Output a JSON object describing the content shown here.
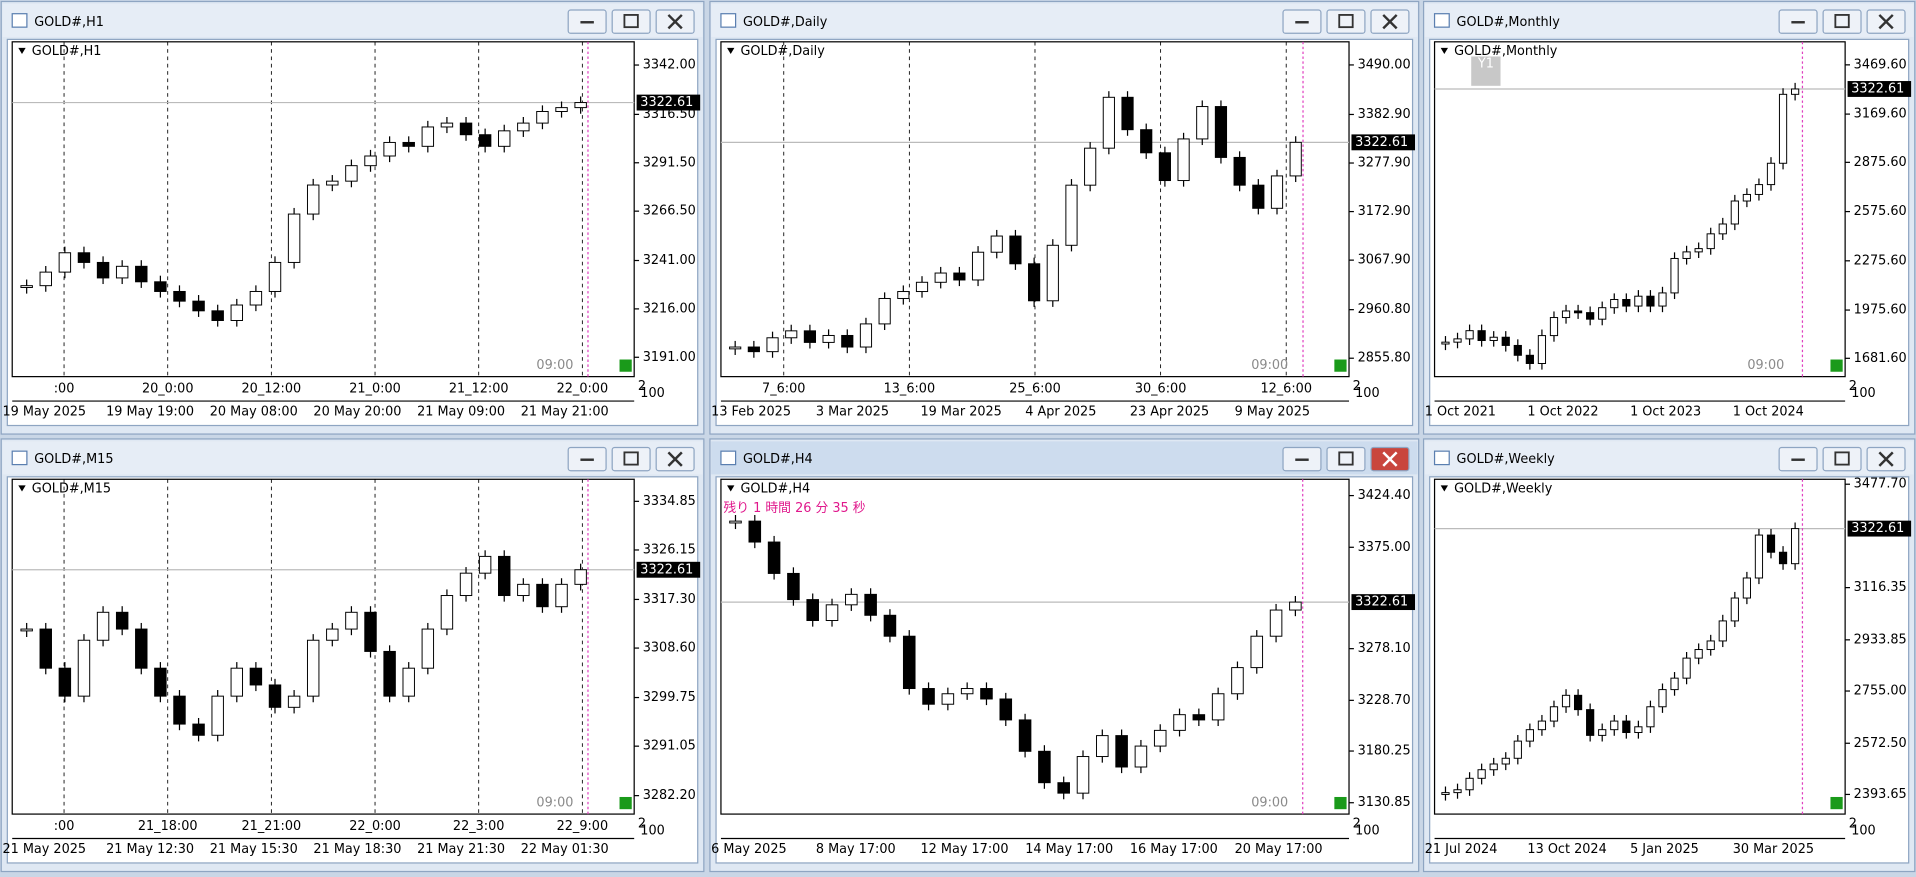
{
  "windows": [
    {
      "title": "GOLD#,H1",
      "label": "GOLD#,H1",
      "ylim": [
        3181,
        3354
      ],
      "yticks": [
        {
          "value": 3342,
          "label": "3342.00"
        },
        {
          "value": 3316.5,
          "label": "3316.50"
        },
        {
          "value": 3291.5,
          "label": "3291.50"
        },
        {
          "value": 3266.5,
          "label": "3266.50"
        },
        {
          "value": 3241,
          "label": "3241.00"
        },
        {
          "value": 3216,
          "label": "3216.00"
        },
        {
          "value": 3191,
          "label": "3191.00"
        }
      ],
      "current_price": 3322.61,
      "time_marker": "09:00",
      "axis_corner": [
        "2",
        "100"
      ],
      "dates": [
        "19 May 2025",
        "19 May 19:00",
        "20 May 08:00",
        "20 May 20:00",
        "21 May 09:00",
        "21 May 21:00"
      ],
      "grid_labels": [
        ":00",
        "20_0:00",
        "20_12:00",
        "21_0:00",
        "21_12:00",
        "22_0:00"
      ],
      "closes": [
        3228,
        3235,
        3245,
        3240,
        3232,
        3238,
        3230,
        3225,
        3220,
        3215,
        3210,
        3218,
        3225,
        3240,
        3265,
        3280,
        3282,
        3290,
        3295,
        3302,
        3300,
        3310,
        3312,
        3306,
        3300,
        3308,
        3312,
        3318,
        3320,
        3322.61
      ]
    },
    {
      "title": "GOLD#,Daily",
      "label": "GOLD#,Daily",
      "ylim": [
        2816,
        3540
      ],
      "yticks": [
        {
          "value": 3490,
          "label": "3490.00"
        },
        {
          "value": 3382.9,
          "label": "3382.90"
        },
        {
          "value": 3277.9,
          "label": "3277.90"
        },
        {
          "value": 3172.9,
          "label": "3172.90"
        },
        {
          "value": 3067.9,
          "label": "3067.90"
        },
        {
          "value": 2960.8,
          "label": "2960.80"
        },
        {
          "value": 2855.8,
          "label": "2855.80"
        }
      ],
      "current_price": 3322.61,
      "time_marker": "09:00",
      "axis_corner": [
        "2",
        "100"
      ],
      "dates": [
        "13 Feb 2025",
        "3 Mar 2025",
        "19 Mar 2025",
        "4 Apr 2025",
        "23 Apr 2025",
        "9 May 2025"
      ],
      "grid_labels": [
        "7_6:00",
        "13_6:00",
        "25_6:00",
        "30_6:00",
        "12_6:00"
      ],
      "closes": [
        2880,
        2870,
        2900,
        2915,
        2890,
        2905,
        2880,
        2930,
        2985,
        3000,
        3020,
        3040,
        3025,
        3085,
        3120,
        3060,
        2980,
        3100,
        3230,
        3310,
        3420,
        3350,
        3300,
        3240,
        3330,
        3400,
        3290,
        3230,
        3180,
        3250,
        3322.61
      ]
    },
    {
      "title": "GOLD#,Monthly",
      "label": "GOLD#,Monthly",
      "ylim": [
        1570,
        3610
      ],
      "button": "Y1",
      "yticks": [
        {
          "value": 3469.6,
          "label": "3469.60"
        },
        {
          "value": 3169.6,
          "label": "3169.60"
        },
        {
          "value": 2875.6,
          "label": "2875.60"
        },
        {
          "value": 2575.6,
          "label": "2575.60"
        },
        {
          "value": 2275.6,
          "label": "2275.60"
        },
        {
          "value": 1975.6,
          "label": "1975.60"
        },
        {
          "value": 1681.6,
          "label": "1681.60"
        }
      ],
      "current_price": 3322.61,
      "time_marker": "09:00",
      "axis_corner": [
        "2",
        "100"
      ],
      "dates": [
        "1 Oct 2021",
        "1 Oct 2022",
        "1 Oct 2023",
        "1 Oct 2024"
      ],
      "closes": [
        1780,
        1800,
        1850,
        1790,
        1810,
        1760,
        1700,
        1650,
        1820,
        1930,
        1970,
        1960,
        1920,
        1990,
        2040,
        2000,
        2060,
        2000,
        2080,
        2290,
        2330,
        2350,
        2440,
        2500,
        2640,
        2680,
        2740,
        2870,
        3290,
        3322.61
      ]
    },
    {
      "title": "GOLD#,M15",
      "label": "GOLD#,M15",
      "ylim": [
        3278.9,
        3338.8
      ],
      "yticks": [
        3334.85,
        3326.15,
        {
          "value": 3317.3,
          "label": "3317.30"
        },
        {
          "value": 3308.6,
          "label": "3308.60"
        },
        3299.75,
        3291.05,
        {
          "value": 3282.2,
          "label": "3282.20"
        }
      ],
      "current_price": 3322.61,
      "time_marker": "09:00",
      "axis_corner": [
        "2",
        "100"
      ],
      "dates": [
        "21 May 2025",
        "21 May 12:30",
        "21 May 15:30",
        "21 May 18:30",
        "21 May 21:30",
        "22 May 01:30"
      ],
      "grid_labels": [
        ":00",
        "21_18:00",
        "21_21:00",
        "22_0:00",
        "22_3:00",
        "22_9:00"
      ],
      "closes": [
        3312,
        3305,
        3300,
        3310,
        3315,
        3312,
        3305,
        3300,
        3295,
        3293,
        3300,
        3305,
        3302,
        3298,
        3300,
        3310,
        3312,
        3315,
        3308,
        3300,
        3305,
        3312,
        3318,
        3322,
        3325,
        3318,
        3320,
        3316,
        3320,
        3322.61
      ]
    },
    {
      "title": "GOLD#,H4",
      "label": "GOLD#,H4",
      "ylim": [
        3120,
        3440
      ],
      "active": true,
      "countdown": "残り 1 時間 26 分 35 秒",
      "yticks": [
        {
          "value": 3424.4,
          "label": "3424.40"
        },
        {
          "value": 3375,
          "label": "3375.00"
        },
        {
          "value": 3278.1,
          "label": "3278.10"
        },
        {
          "value": 3228.7,
          "label": "3228.70"
        },
        3180.25,
        3130.85
      ],
      "current_price": 3322.61,
      "time_marker": "09:00",
      "axis_corner": [
        "2",
        "100"
      ],
      "dates": [
        "6 May 2025",
        "8 May 17:00",
        "12 May 17:00",
        "14 May 17:00",
        "16 May 17:00",
        "20 May 17:00"
      ],
      "closes": [
        3400,
        3380,
        3350,
        3325,
        3305,
        3320,
        3330,
        3310,
        3290,
        3240,
        3225,
        3235,
        3240,
        3230,
        3210,
        3180,
        3150,
        3140,
        3175,
        3195,
        3165,
        3185,
        3200,
        3215,
        3210,
        3235,
        3260,
        3290,
        3315,
        3322.61
      ]
    },
    {
      "title": "GOLD#,Weekly",
      "label": "GOLD#,Weekly",
      "ylim": [
        2325,
        3495
      ],
      "yticks": [
        {
          "value": 3477.7,
          "label": "3477.70"
        },
        {
          "value": 3116.35,
          "label": "3116.35"
        },
        {
          "value": 2933.85,
          "label": "2933.85"
        },
        {
          "value": 2755,
          "label": "2755.00"
        },
        {
          "value": 2572.5,
          "label": "2572.50"
        },
        2393.65
      ],
      "current_price": 3322.61,
      "axis_corner": [
        "2",
        "100"
      ],
      "dates": [
        "21 Jul 2024",
        "13 Oct 2024",
        "5 Jan 2025",
        "30 Mar 2025"
      ],
      "closes": [
        2400,
        2410,
        2450,
        2480,
        2500,
        2520,
        2580,
        2620,
        2650,
        2700,
        2740,
        2690,
        2600,
        2620,
        2650,
        2610,
        2630,
        2700,
        2760,
        2800,
        2870,
        2900,
        2930,
        3000,
        3080,
        3150,
        3300,
        3240,
        3200,
        3322.61
      ]
    }
  ]
}
